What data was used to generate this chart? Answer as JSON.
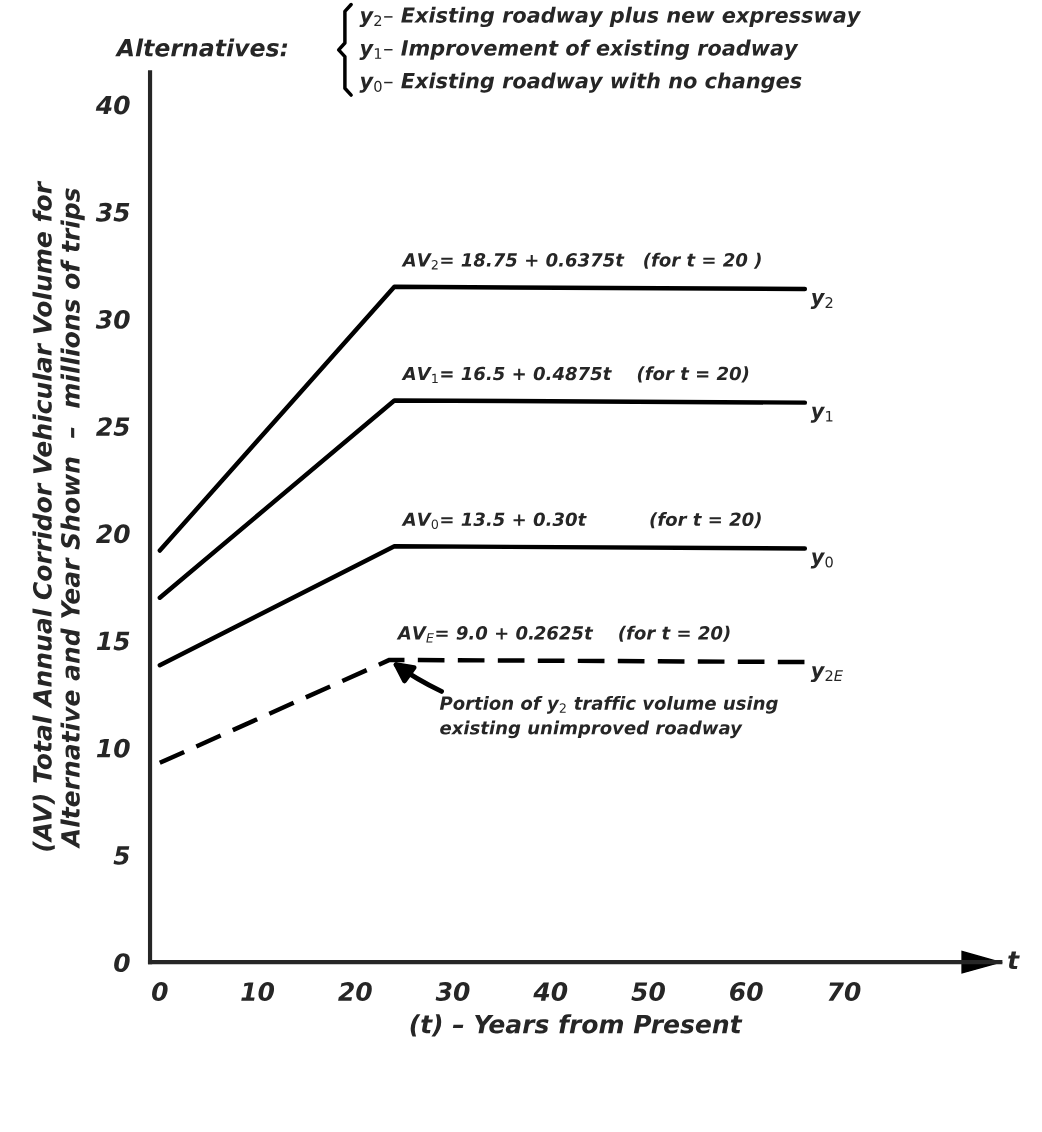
{
  "chart_data": {
    "type": "line",
    "xlabel": "(t) – Years from Present",
    "ylabel": "(AV) Total Annual Corridor Vehicular Volume for\nAlternative and Year Shown  –  millions of trips",
    "xlim": [
      -1,
      86
    ],
    "ylim": [
      0,
      41.5
    ],
    "xticks": [
      0,
      10,
      20,
      30,
      40,
      50,
      60,
      70
    ],
    "yticks": [
      0,
      5,
      10,
      15,
      20,
      25,
      30,
      35,
      40
    ],
    "grid": false,
    "legend": false,
    "marker": "none",
    "series": [
      {
        "name": "y$_{2}$",
        "color": "#000000",
        "line_style": "solid",
        "x": [
          0,
          24,
          66
        ],
        "values": [
          19.2,
          31.5,
          31.4
        ]
      },
      {
        "name": "y$_{1}$",
        "color": "#000000",
        "line_style": "solid",
        "x": [
          0,
          24,
          66
        ],
        "values": [
          17.0,
          26.2,
          26.1
        ]
      },
      {
        "name": "y$_{0}$",
        "color": "#000000",
        "line_style": "solid",
        "x": [
          0,
          24,
          66
        ],
        "values": [
          13.85,
          19.4,
          19.3
        ]
      },
      {
        "name": "y$_{2E}$",
        "color": "#000000",
        "line_style": "dashed",
        "x": [
          0,
          23.5,
          66
        ],
        "values": [
          9.3,
          14.1,
          14.0
        ]
      }
    ],
    "annotations": [
      "Alternatives:",
      "y$_{2}$– Existing roadway plus new expressway",
      "y$_{1}$– Improvement of existing roadway",
      "y$_{0}$– Existing roadway with no changes",
      "t",
      "AV$_{2}$= 18.75 + 0.6375t   (for t = 20 )",
      "AV$_{1}$= 16.5 + 0.4875t    (for t = 20)",
      "AV$_{0}$= 13.5 + 0.30t          (for t = 20)",
      "AV$_{E}$= 9.0 + 0.2625t    (for t = 20)",
      {
        "text": "Portion of y$_{2}$ traffic volume using\nexisting unimproved roadway",
        "x": 23.5,
        "y": 14.1
      }
    ]
  }
}
